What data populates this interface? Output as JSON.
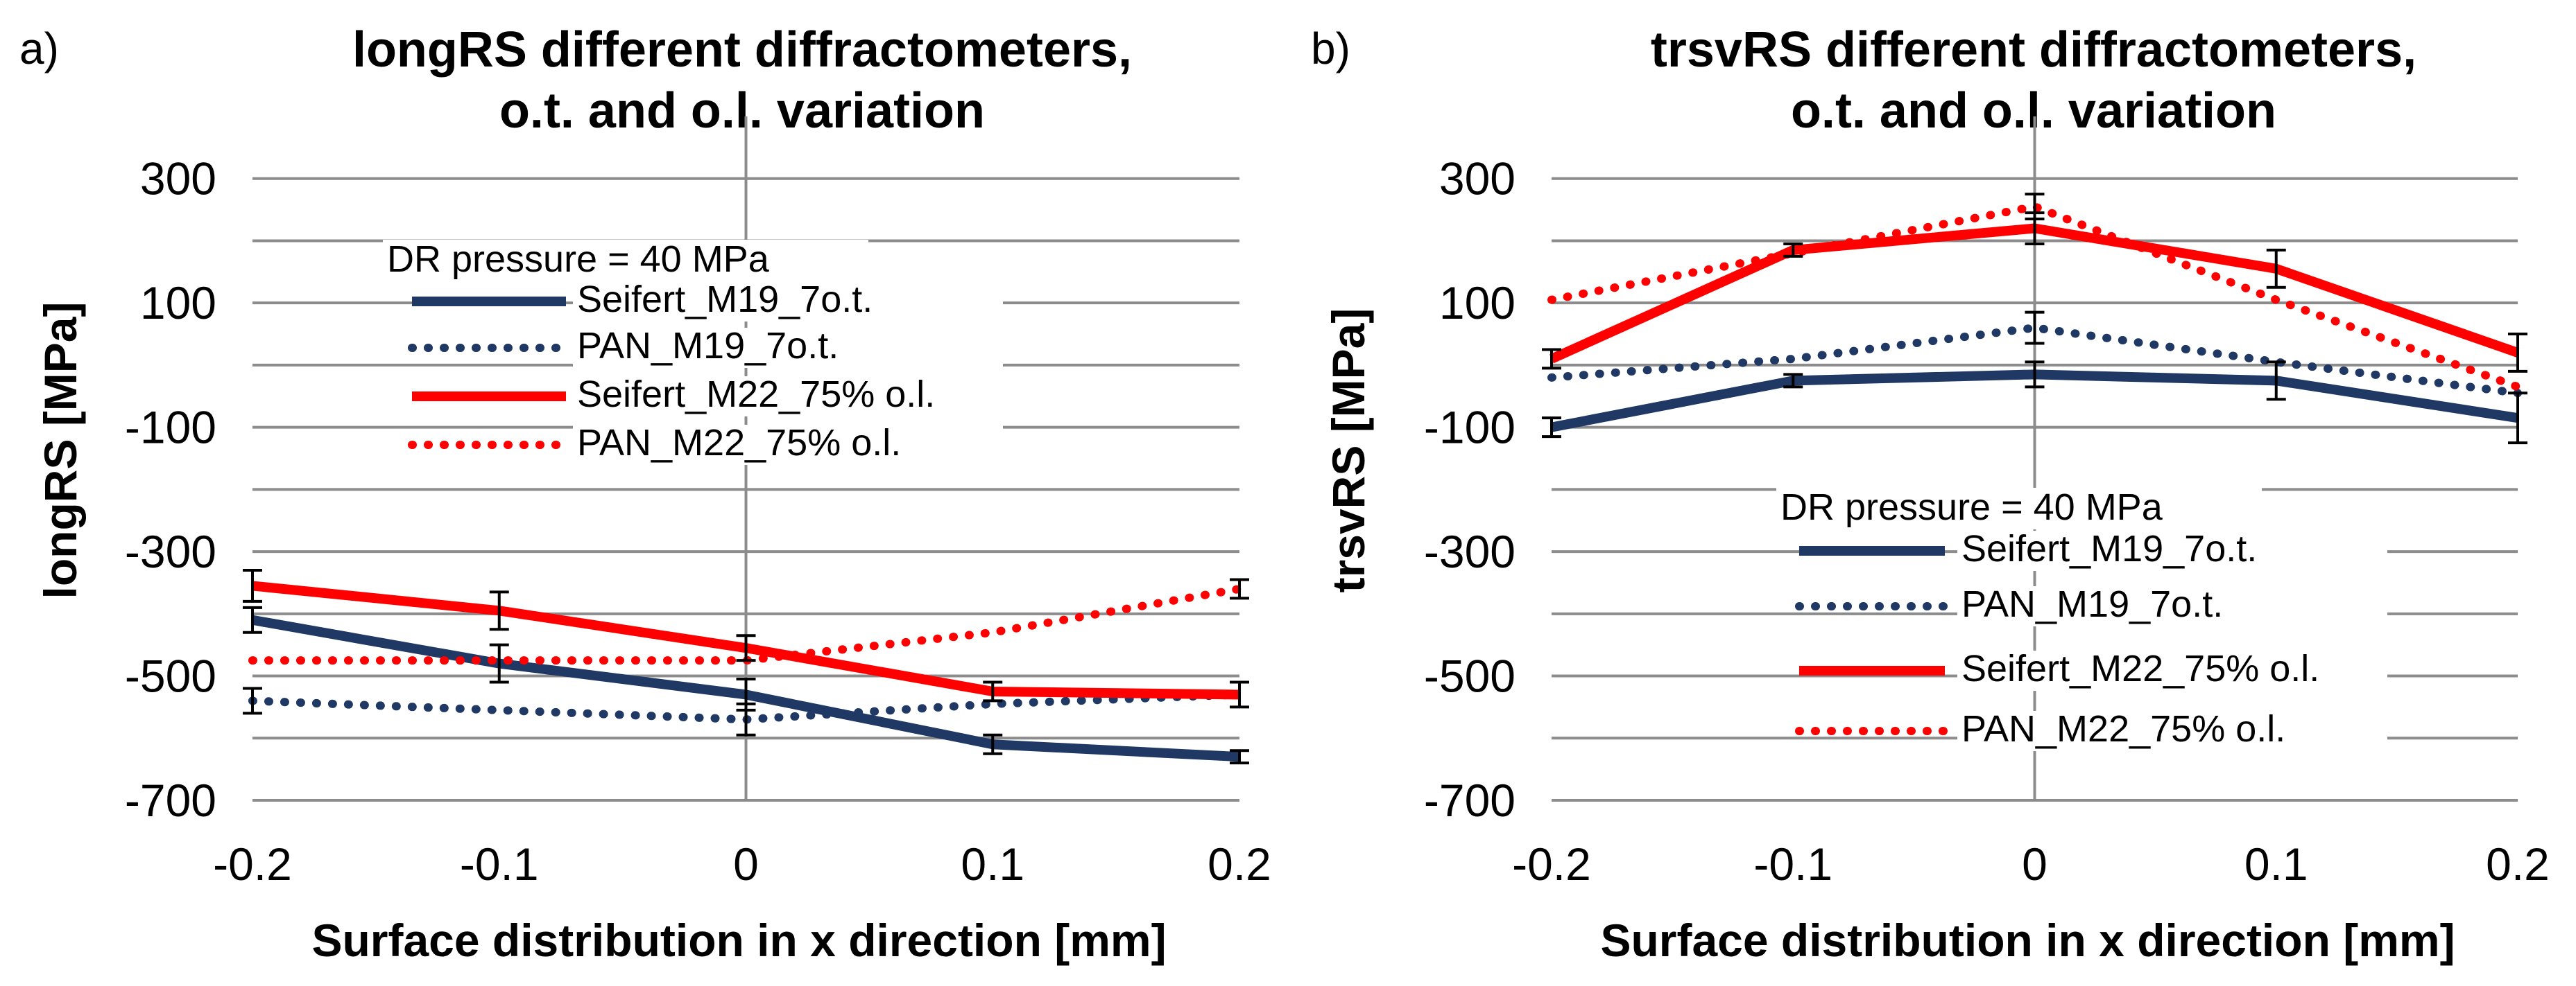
{
  "chart_data": [
    {
      "type": "line",
      "panel_label": "a)",
      "title": [
        "longRS different diffractometers,",
        "o.t. and o.l. variation"
      ],
      "xlabel": "Surface distribution in x direction [mm]",
      "ylabel": "longRS [MPa]",
      "x": [
        -0.2,
        -0.1,
        0,
        0.1,
        0.2
      ],
      "xlim": [
        -0.2,
        0.2
      ],
      "ylim": [
        -700,
        400
      ],
      "xticks": [
        -0.2,
        -0.1,
        0,
        0.1,
        0.2
      ],
      "xtick_labels": [
        "-0.2",
        "-0.1",
        "0",
        "0.1",
        "0.2"
      ],
      "yticks": [
        -700,
        -500,
        -300,
        -100,
        100,
        300
      ],
      "ytick_labels": [
        "-700",
        "-500",
        "-300",
        "-100",
        "100",
        "300"
      ],
      "legend_title": "DR pressure = 40 MPa",
      "legend_position": "top-center",
      "series": [
        {
          "name": "Seifert_M19_7o.t.",
          "color": "#1f3864",
          "style": "solid",
          "values": [
            -410,
            -480,
            -530,
            -610,
            -630
          ],
          "errors": [
            20,
            30,
            25,
            15,
            10
          ]
        },
        {
          "name": "PAN_M19_7o.t.",
          "color": "#1f3864",
          "style": "dotted",
          "values": [
            -540,
            -555,
            -570,
            -545,
            -530
          ],
          "errors": [
            20,
            0,
            25,
            0,
            0
          ]
        },
        {
          "name": "Seifert_M22_75% o.l.",
          "color": "#ff0000",
          "style": "solid",
          "values": [
            -355,
            -395,
            -455,
            -525,
            -530
          ],
          "errors": [
            25,
            30,
            20,
            15,
            20
          ]
        },
        {
          "name": "PAN_M22_75% o.l.",
          "color": "#ff0000",
          "style": "dotted",
          "values": [
            -475,
            -475,
            -475,
            -430,
            -360
          ],
          "errors": [
            0,
            0,
            0,
            0,
            15
          ]
        }
      ]
    },
    {
      "type": "line",
      "panel_label": "b)",
      "title": [
        "trsvRS different diffractometers,",
        "o.t. and o.l. variation"
      ],
      "xlabel": "Surface distribution in x direction [mm]",
      "ylabel": "trsvRS [MPa]",
      "x": [
        -0.2,
        -0.1,
        0,
        0.1,
        0.2
      ],
      "xlim": [
        -0.2,
        0.2
      ],
      "ylim": [
        -700,
        400
      ],
      "xticks": [
        -0.2,
        -0.1,
        0,
        0.1,
        0.2
      ],
      "xtick_labels": [
        "-0.2",
        "-0.1",
        "0",
        "0.1",
        "0.2"
      ],
      "yticks": [
        -700,
        -500,
        -300,
        -100,
        100,
        300
      ],
      "ytick_labels": [
        "-700",
        "-500",
        "-300",
        "-100",
        "100",
        "300"
      ],
      "legend_title": "DR pressure = 40 MPa",
      "legend_position": "bottom-center",
      "series": [
        {
          "name": "Seifert_M19_7o.t.",
          "color": "#1f3864",
          "style": "solid",
          "values": [
            -100,
            -25,
            -15,
            -25,
            -85
          ],
          "errors": [
            15,
            10,
            20,
            30,
            40
          ]
        },
        {
          "name": "PAN_M19_7o.t.",
          "color": "#1f3864",
          "style": "dotted",
          "values": [
            -20,
            10,
            60,
            5,
            -45
          ],
          "errors": [
            0,
            0,
            25,
            0,
            0
          ]
        },
        {
          "name": "Seifert_M22_75% o.l.",
          "color": "#ff0000",
          "style": "solid",
          "values": [
            10,
            185,
            220,
            155,
            20
          ],
          "errors": [
            15,
            10,
            25,
            30,
            30
          ]
        },
        {
          "name": "PAN_M22_75% o.l.",
          "color": "#ff0000",
          "style": "dotted",
          "values": [
            105,
            180,
            255,
            105,
            -35
          ],
          "errors": [
            0,
            0,
            20,
            0,
            0
          ]
        }
      ]
    }
  ]
}
